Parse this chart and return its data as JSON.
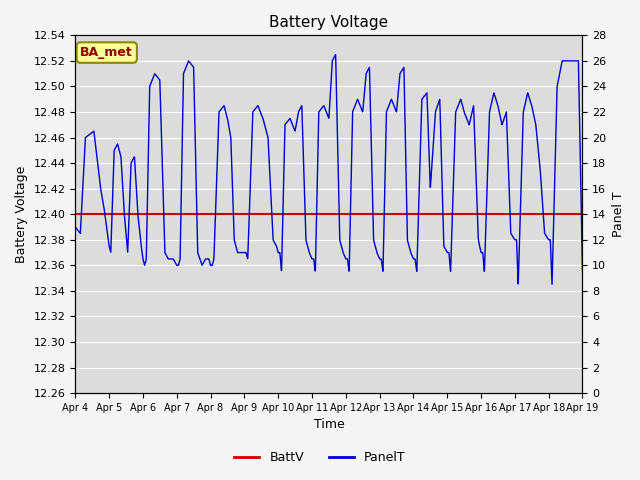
{
  "title": "Battery Voltage",
  "xlabel": "Time",
  "ylabel_left": "Battery Voltage",
  "ylabel_right": "Panel T",
  "ylim_left": [
    12.26,
    12.54
  ],
  "ylim_right": [
    0,
    28
  ],
  "yticks_left": [
    12.26,
    12.28,
    12.3,
    12.32,
    12.34,
    12.36,
    12.38,
    12.4,
    12.42,
    12.44,
    12.46,
    12.48,
    12.5,
    12.52,
    12.54
  ],
  "yticks_right": [
    0,
    2,
    4,
    6,
    8,
    10,
    12,
    14,
    16,
    18,
    20,
    22,
    24,
    26,
    28
  ],
  "xtick_labels": [
    "Apr 4",
    "Apr 5",
    "Apr 6",
    "Apr 7",
    "Apr 8",
    "Apr 9",
    "Apr 10",
    "Apr 11",
    "Apr 12",
    "Apr 13",
    "Apr 14",
    "Apr 15",
    "Apr 16",
    "Apr 17",
    "Apr 18",
    "Apr 19"
  ],
  "batt_v_value": 12.4,
  "batt_v_color": "#cc0000",
  "panel_t_color": "#0000cc",
  "bg_color": "#dcdcdc",
  "fig_bg_color": "#f5f5f5",
  "grid_color": "#ffffff",
  "annotation_text": "BA_met",
  "annotation_bg": "#ffff99",
  "annotation_border": "#888800",
  "annotation_text_color": "#8b0000",
  "legend_labels": [
    "BattV",
    "PanelT"
  ],
  "panel_t_keypoints_x": [
    0.0,
    0.15,
    0.3,
    0.55,
    0.75,
    0.85,
    0.9,
    1.0,
    1.05,
    1.15,
    1.25,
    1.35,
    1.45,
    1.55,
    1.65,
    1.75,
    1.85,
    1.95,
    2.0,
    2.05,
    2.1,
    2.2,
    2.35,
    2.5,
    2.65,
    2.75,
    2.85,
    2.9,
    3.0,
    3.05,
    3.1,
    3.2,
    3.35,
    3.5,
    3.62,
    3.75,
    3.85,
    3.95,
    4.0,
    4.05,
    4.1,
    4.25,
    4.4,
    4.5,
    4.6,
    4.7,
    4.8,
    4.9,
    5.0,
    5.05,
    5.1,
    5.25,
    5.4,
    5.55,
    5.7,
    5.85,
    5.95,
    6.0,
    6.05,
    6.1,
    6.2,
    6.35,
    6.5,
    6.6,
    6.7,
    6.82,
    6.92,
    7.0,
    7.05,
    7.1,
    7.2,
    7.35,
    7.5,
    7.6,
    7.7,
    7.82,
    7.92,
    8.0,
    8.05,
    8.1,
    8.2,
    8.35,
    8.5,
    8.6,
    8.7,
    8.82,
    8.92,
    9.0,
    9.05,
    9.1,
    9.2,
    9.35,
    9.5,
    9.6,
    9.72,
    9.82,
    9.92,
    10.0,
    10.05,
    10.1,
    10.25,
    10.4,
    10.5,
    10.65,
    10.78,
    10.9,
    11.0,
    11.05,
    11.1,
    11.25,
    11.4,
    11.5,
    11.65,
    11.78,
    11.92,
    12.0,
    12.05,
    12.1,
    12.25,
    12.38,
    12.5,
    12.62,
    12.75,
    12.88,
    13.0,
    13.05,
    13.1,
    13.25,
    13.38,
    13.5,
    13.62,
    13.75,
    13.88,
    14.0,
    14.05,
    14.1,
    14.25,
    14.4,
    14.5,
    14.62,
    14.75,
    14.88,
    15.0
  ],
  "panel_t_keypoints_y": [
    13.0,
    12.5,
    20.0,
    20.5,
    16.0,
    14.5,
    13.5,
    11.5,
    11.0,
    19.0,
    19.5,
    18.5,
    14.0,
    11.0,
    18.0,
    18.5,
    14.0,
    11.5,
    10.5,
    10.0,
    10.5,
    24.0,
    25.0,
    24.5,
    11.0,
    10.5,
    10.5,
    10.5,
    10.0,
    10.0,
    10.5,
    25.0,
    26.0,
    25.5,
    11.0,
    10.0,
    10.5,
    10.5,
    10.0,
    10.0,
    10.5,
    22.0,
    22.5,
    21.5,
    20.0,
    12.0,
    11.0,
    11.0,
    11.0,
    11.0,
    10.5,
    22.0,
    22.5,
    21.5,
    20.0,
    12.0,
    11.5,
    11.0,
    11.0,
    9.5,
    21.0,
    21.5,
    20.5,
    22.0,
    22.5,
    12.0,
    11.0,
    10.5,
    10.5,
    9.5,
    22.0,
    22.5,
    21.5,
    26.0,
    26.5,
    12.0,
    11.0,
    10.5,
    10.5,
    9.5,
    22.0,
    23.0,
    22.0,
    25.0,
    25.5,
    12.0,
    11.0,
    10.5,
    10.5,
    9.5,
    22.0,
    23.0,
    22.0,
    25.0,
    25.5,
    12.0,
    11.0,
    10.5,
    10.5,
    9.5,
    23.0,
    23.5,
    16.0,
    22.0,
    23.0,
    11.5,
    11.0,
    11.0,
    9.5,
    22.0,
    23.0,
    22.0,
    21.0,
    22.5,
    12.0,
    11.0,
    11.0,
    9.5,
    22.0,
    23.5,
    22.5,
    21.0,
    22.0,
    12.5,
    12.0,
    12.0,
    8.5,
    22.0,
    23.5,
    22.5,
    21.0,
    17.5,
    12.5,
    12.0,
    12.0,
    8.5,
    24.0,
    26.0,
    26.0,
    26.0,
    26.0,
    26.0,
    9.5
  ]
}
